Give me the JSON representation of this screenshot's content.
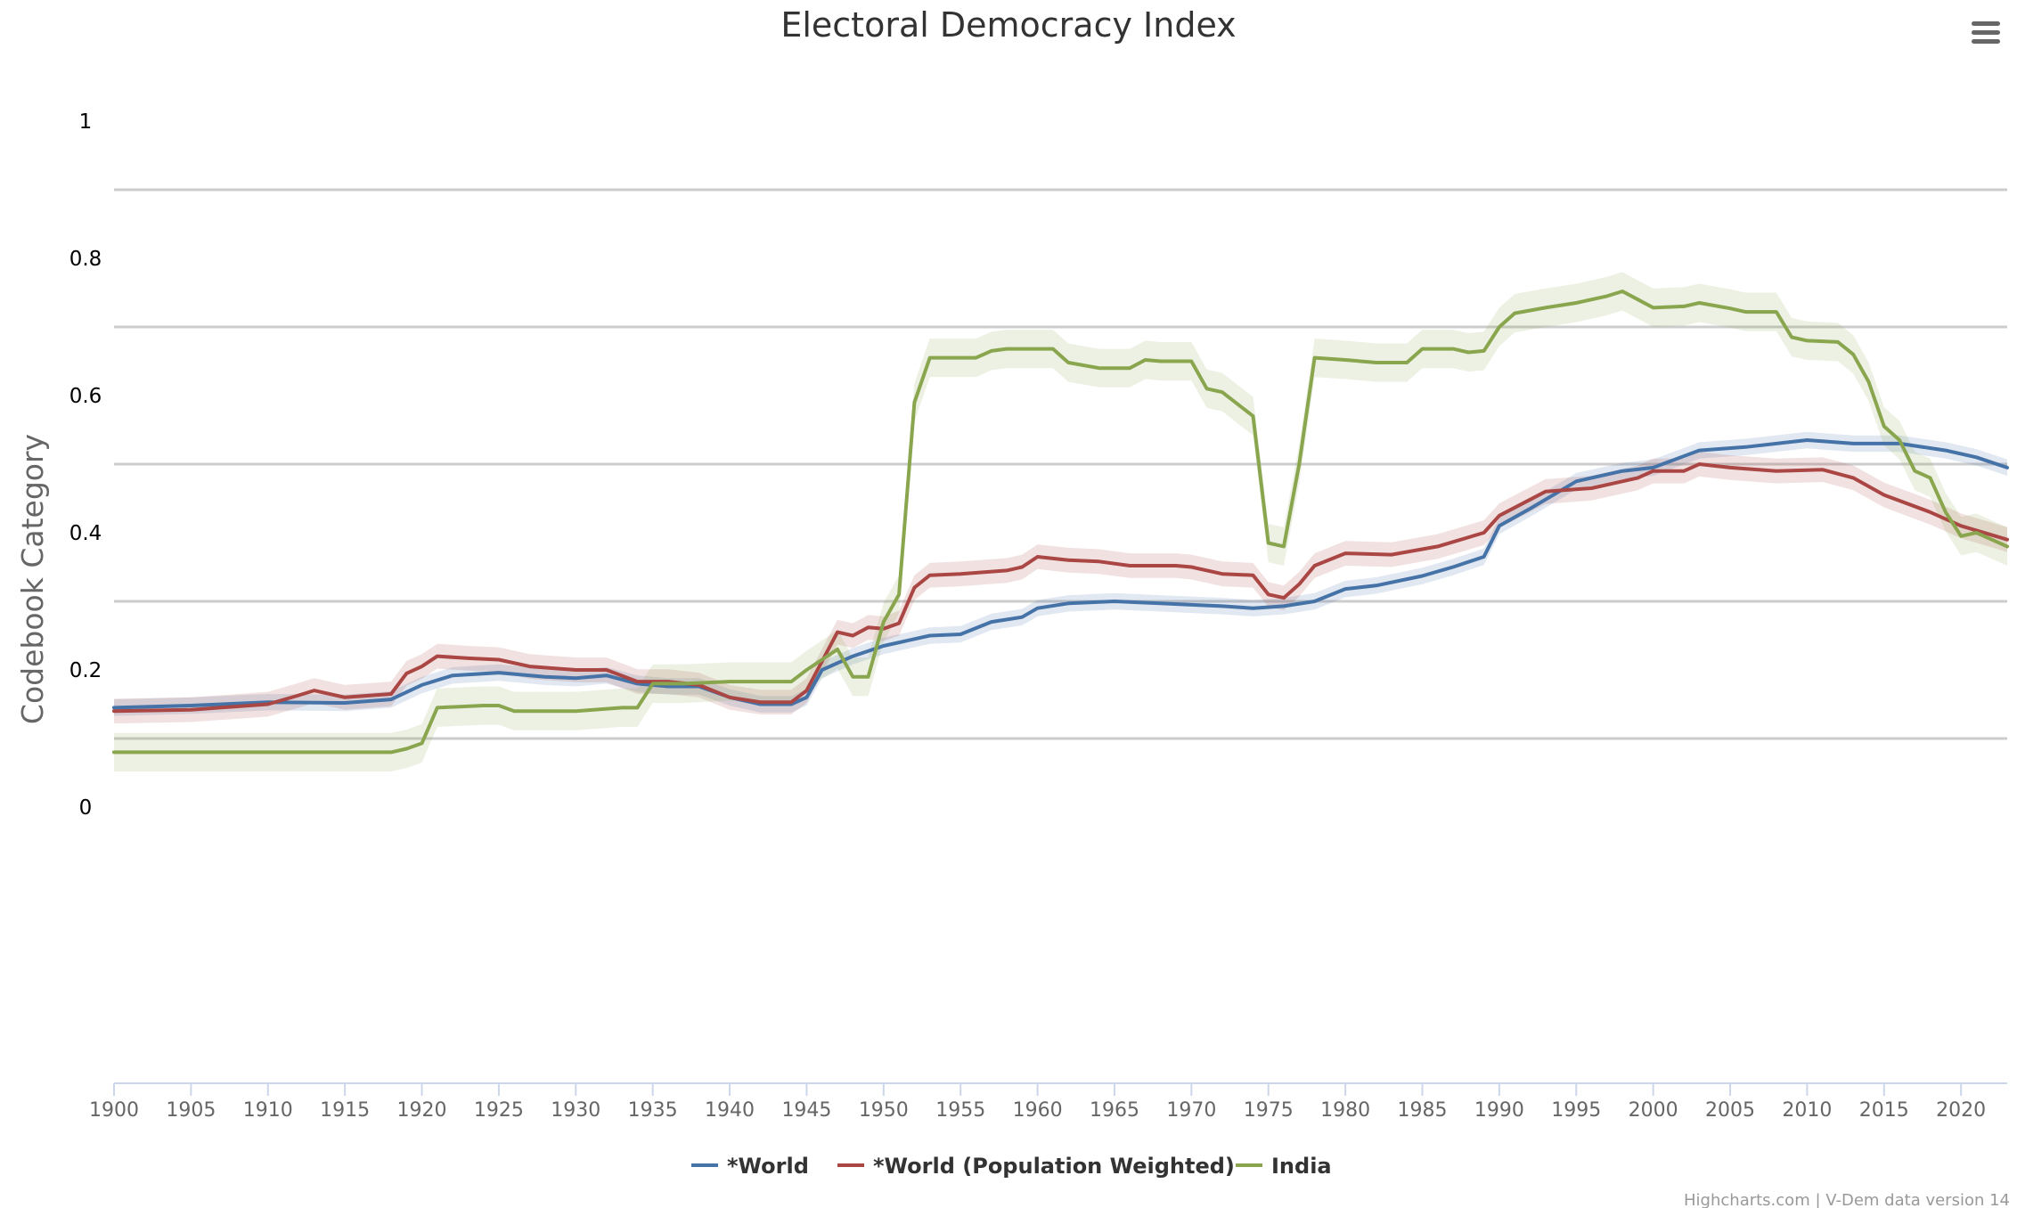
{
  "chart_data": {
    "type": "line",
    "title": "Electoral Democracy Index",
    "ylabel": "Codebook Category",
    "xlabel": "",
    "xlim": [
      1900,
      2023
    ],
    "ylim": [
      -0.2,
      1.05
    ],
    "y_tick_labels": [
      "1",
      "0.8",
      "0.6",
      "0.4",
      "0.2",
      "0"
    ],
    "x_ticks": [
      1900,
      1905,
      1910,
      1915,
      1920,
      1925,
      1930,
      1935,
      1940,
      1945,
      1950,
      1955,
      1960,
      1965,
      1970,
      1975,
      1980,
      1985,
      1990,
      1995,
      2000,
      2005,
      2010,
      2015,
      2020
    ],
    "grid": true,
    "legend_position": "bottom",
    "credits": "Highcharts.com | V-Dem data version 14",
    "series": [
      {
        "name": "*World",
        "color": "#4572a7",
        "band_width": 0.012,
        "points": [
          [
            1900,
            0.145
          ],
          [
            1905,
            0.148
          ],
          [
            1910,
            0.153
          ],
          [
            1915,
            0.152
          ],
          [
            1918,
            0.157
          ],
          [
            1920,
            0.178
          ],
          [
            1922,
            0.192
          ],
          [
            1925,
            0.196
          ],
          [
            1928,
            0.19
          ],
          [
            1930,
            0.188
          ],
          [
            1932,
            0.192
          ],
          [
            1934,
            0.18
          ],
          [
            1936,
            0.176
          ],
          [
            1938,
            0.176
          ],
          [
            1940,
            0.16
          ],
          [
            1942,
            0.15
          ],
          [
            1944,
            0.15
          ],
          [
            1945,
            0.16
          ],
          [
            1946,
            0.2
          ],
          [
            1948,
            0.22
          ],
          [
            1950,
            0.235
          ],
          [
            1953,
            0.25
          ],
          [
            1955,
            0.252
          ],
          [
            1957,
            0.27
          ],
          [
            1959,
            0.277
          ],
          [
            1960,
            0.29
          ],
          [
            1962,
            0.297
          ],
          [
            1965,
            0.3
          ],
          [
            1968,
            0.297
          ],
          [
            1970,
            0.295
          ],
          [
            1972,
            0.293
          ],
          [
            1974,
            0.29
          ],
          [
            1976,
            0.293
          ],
          [
            1978,
            0.3
          ],
          [
            1980,
            0.318
          ],
          [
            1982,
            0.323
          ],
          [
            1985,
            0.337
          ],
          [
            1987,
            0.35
          ],
          [
            1989,
            0.365
          ],
          [
            1990,
            0.41
          ],
          [
            1992,
            0.435
          ],
          [
            1995,
            0.475
          ],
          [
            1998,
            0.49
          ],
          [
            2000,
            0.495
          ],
          [
            2003,
            0.52
          ],
          [
            2006,
            0.525
          ],
          [
            2010,
            0.535
          ],
          [
            2013,
            0.53
          ],
          [
            2016,
            0.53
          ],
          [
            2019,
            0.52
          ],
          [
            2021,
            0.51
          ],
          [
            2023,
            0.495
          ]
        ]
      },
      {
        "name": "*World (Population Weighted)",
        "color": "#aa4643",
        "band_width": 0.018,
        "points": [
          [
            1900,
            0.14
          ],
          [
            1905,
            0.142
          ],
          [
            1910,
            0.15
          ],
          [
            1912,
            0.163
          ],
          [
            1913,
            0.17
          ],
          [
            1915,
            0.16
          ],
          [
            1918,
            0.165
          ],
          [
            1919,
            0.195
          ],
          [
            1920,
            0.205
          ],
          [
            1921,
            0.22
          ],
          [
            1923,
            0.217
          ],
          [
            1925,
            0.215
          ],
          [
            1927,
            0.205
          ],
          [
            1930,
            0.2
          ],
          [
            1932,
            0.2
          ],
          [
            1934,
            0.183
          ],
          [
            1936,
            0.183
          ],
          [
            1938,
            0.178
          ],
          [
            1940,
            0.16
          ],
          [
            1942,
            0.153
          ],
          [
            1944,
            0.153
          ],
          [
            1945,
            0.17
          ],
          [
            1947,
            0.255
          ],
          [
            1948,
            0.25
          ],
          [
            1949,
            0.262
          ],
          [
            1950,
            0.26
          ],
          [
            1951,
            0.268
          ],
          [
            1952,
            0.32
          ],
          [
            1953,
            0.338
          ],
          [
            1955,
            0.34
          ],
          [
            1958,
            0.345
          ],
          [
            1959,
            0.35
          ],
          [
            1960,
            0.365
          ],
          [
            1962,
            0.36
          ],
          [
            1964,
            0.358
          ],
          [
            1966,
            0.352
          ],
          [
            1969,
            0.352
          ],
          [
            1970,
            0.35
          ],
          [
            1972,
            0.34
          ],
          [
            1974,
            0.338
          ],
          [
            1975,
            0.31
          ],
          [
            1976,
            0.305
          ],
          [
            1977,
            0.325
          ],
          [
            1978,
            0.352
          ],
          [
            1980,
            0.37
          ],
          [
            1983,
            0.368
          ],
          [
            1986,
            0.38
          ],
          [
            1989,
            0.4
          ],
          [
            1990,
            0.425
          ],
          [
            1993,
            0.46
          ],
          [
            1996,
            0.465
          ],
          [
            1999,
            0.48
          ],
          [
            2000,
            0.49
          ],
          [
            2002,
            0.49
          ],
          [
            2003,
            0.5
          ],
          [
            2005,
            0.495
          ],
          [
            2008,
            0.49
          ],
          [
            2011,
            0.492
          ],
          [
            2013,
            0.48
          ],
          [
            2015,
            0.455
          ],
          [
            2018,
            0.43
          ],
          [
            2020,
            0.41
          ],
          [
            2023,
            0.39
          ]
        ]
      },
      {
        "name": "India",
        "color": "#89a54e",
        "band_width": 0.028,
        "points": [
          [
            1900,
            0.08
          ],
          [
            1905,
            0.08
          ],
          [
            1910,
            0.08
          ],
          [
            1915,
            0.08
          ],
          [
            1918,
            0.08
          ],
          [
            1919,
            0.085
          ],
          [
            1920,
            0.093
          ],
          [
            1921,
            0.145
          ],
          [
            1924,
            0.148
          ],
          [
            1925,
            0.148
          ],
          [
            1926,
            0.14
          ],
          [
            1930,
            0.14
          ],
          [
            1933,
            0.145
          ],
          [
            1934,
            0.145
          ],
          [
            1935,
            0.18
          ],
          [
            1937,
            0.18
          ],
          [
            1940,
            0.183
          ],
          [
            1944,
            0.183
          ],
          [
            1945,
            0.2
          ],
          [
            1947,
            0.23
          ],
          [
            1948,
            0.19
          ],
          [
            1949,
            0.19
          ],
          [
            1950,
            0.27
          ],
          [
            1951,
            0.31
          ],
          [
            1952,
            0.59
          ],
          [
            1953,
            0.655
          ],
          [
            1956,
            0.655
          ],
          [
            1957,
            0.665
          ],
          [
            1958,
            0.668
          ],
          [
            1961,
            0.668
          ],
          [
            1962,
            0.648
          ],
          [
            1964,
            0.64
          ],
          [
            1966,
            0.64
          ],
          [
            1967,
            0.652
          ],
          [
            1968,
            0.65
          ],
          [
            1970,
            0.65
          ],
          [
            1971,
            0.61
          ],
          [
            1972,
            0.605
          ],
          [
            1974,
            0.57
          ],
          [
            1975,
            0.385
          ],
          [
            1976,
            0.38
          ],
          [
            1977,
            0.5
          ],
          [
            1978,
            0.655
          ],
          [
            1980,
            0.652
          ],
          [
            1982,
            0.648
          ],
          [
            1984,
            0.648
          ],
          [
            1985,
            0.668
          ],
          [
            1987,
            0.668
          ],
          [
            1988,
            0.663
          ],
          [
            1989,
            0.665
          ],
          [
            1990,
            0.7
          ],
          [
            1991,
            0.72
          ],
          [
            1993,
            0.728
          ],
          [
            1995,
            0.735
          ],
          [
            1997,
            0.745
          ],
          [
            1998,
            0.752
          ],
          [
            1999,
            0.74
          ],
          [
            2000,
            0.728
          ],
          [
            2002,
            0.73
          ],
          [
            2003,
            0.735
          ],
          [
            2005,
            0.727
          ],
          [
            2006,
            0.722
          ],
          [
            2008,
            0.722
          ],
          [
            2009,
            0.685
          ],
          [
            2010,
            0.68
          ],
          [
            2012,
            0.678
          ],
          [
            2013,
            0.66
          ],
          [
            2014,
            0.62
          ],
          [
            2015,
            0.555
          ],
          [
            2016,
            0.535
          ],
          [
            2017,
            0.49
          ],
          [
            2018,
            0.48
          ],
          [
            2019,
            0.43
          ],
          [
            2020,
            0.395
          ],
          [
            2021,
            0.4
          ],
          [
            2022,
            0.39
          ],
          [
            2023,
            0.38
          ]
        ]
      }
    ]
  }
}
